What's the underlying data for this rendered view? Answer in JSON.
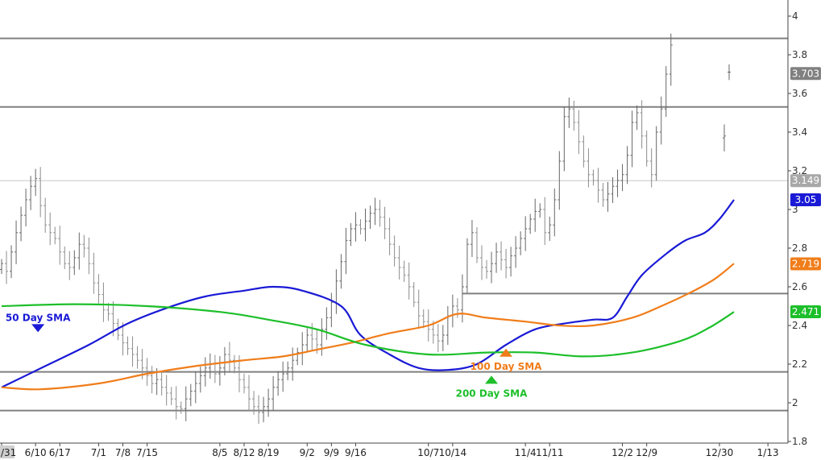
{
  "chart_data": {
    "type": "line",
    "subtype": "ohlc-bar-price-chart",
    "y_axis": {
      "side": "right",
      "range": [
        1.8,
        4.05
      ],
      "ticks": [
        1.8,
        2,
        2.2,
        2.4,
        2.6,
        2.8,
        3,
        3.2,
        3.4,
        3.6,
        3.8,
        4
      ],
      "tick_labels": [
        "1.8",
        "2",
        "2.2",
        "2.4",
        "2.6",
        "2.8",
        "3",
        "3.2",
        "3.4",
        "3.6",
        "3.8",
        "4"
      ]
    },
    "x_axis": {
      "tick_labels": [
        "/31",
        "6/10",
        "6/17",
        "7/1",
        "7/8",
        "7/15",
        "8/5",
        "8/12",
        "8/19",
        "9/2",
        "9/9",
        "9/16",
        "10/7",
        "10/14",
        "11/4",
        "11/11",
        "12/2",
        "12/9",
        "12/30",
        "1/13"
      ],
      "tick_positions": [
        0,
        7,
        12,
        20,
        25,
        30,
        45,
        50,
        55,
        63,
        68,
        73,
        88,
        93,
        108,
        113,
        128,
        133,
        148,
        158
      ]
    },
    "grid": false,
    "price_bars": {
      "x_unit": "trading-day index",
      "count": 139,
      "close": [
        2.72,
        2.68,
        2.78,
        2.88,
        2.97,
        3.05,
        3.12,
        3.16,
        3.02,
        2.92,
        2.88,
        2.85,
        2.78,
        2.72,
        2.7,
        2.75,
        2.82,
        2.8,
        2.72,
        2.62,
        2.56,
        2.48,
        2.46,
        2.41,
        2.35,
        2.31,
        2.28,
        2.25,
        2.22,
        2.18,
        2.14,
        2.1,
        2.12,
        2.08,
        2.05,
        2.02,
        1.98,
        1.97,
        2.02,
        2.06,
        2.1,
        2.14,
        2.18,
        2.2,
        2.15,
        2.18,
        2.25,
        2.22,
        2.18,
        2.12,
        2.08,
        2.02,
        1.98,
        1.95,
        1.98,
        2.02,
        2.08,
        2.12,
        2.15,
        2.18,
        2.22,
        2.26,
        2.3,
        2.35,
        2.33,
        2.3,
        2.38,
        2.44,
        2.52,
        2.63,
        2.73,
        2.84,
        2.9,
        2.92,
        2.9,
        2.94,
        2.98,
        3.0,
        2.96,
        2.9,
        2.82,
        2.75,
        2.7,
        2.66,
        2.6,
        2.52,
        2.45,
        2.42,
        2.38,
        2.35,
        2.32,
        2.35,
        2.45,
        2.5,
        2.48,
        2.6,
        2.82,
        2.88,
        2.75,
        2.7,
        2.68,
        2.72,
        2.78,
        2.74,
        2.7,
        2.76,
        2.8,
        2.85,
        2.9,
        2.95,
        2.99,
        3.0,
        2.88,
        2.92,
        3.05,
        3.25,
        3.48,
        3.52,
        3.45,
        3.35,
        3.25,
        3.18,
        3.15,
        3.1,
        3.05,
        3.08,
        3.12,
        3.15,
        3.18,
        3.28,
        3.45,
        3.5,
        3.38,
        3.25,
        3.18,
        3.4,
        3.52,
        3.7,
        3.85
      ],
      "extra_bars": [
        {
          "index": 149,
          "high": 3.44,
          "low": 3.3,
          "close": 3.38
        },
        {
          "index": 150,
          "high": 3.75,
          "low": 3.67,
          "close": 3.71
        }
      ],
      "last_price": "3.703"
    },
    "series": [
      {
        "name": "50 Day SMA",
        "color": "#1a1ad6",
        "values": [
          2.08,
          2.19,
          2.3,
          2.41,
          2.49,
          2.55,
          2.58,
          2.6,
          2.58,
          2.5,
          2.35,
          2.25,
          2.18,
          2.17,
          2.2,
          2.3,
          2.38,
          2.41,
          2.43,
          2.44,
          2.55,
          2.66,
          2.77,
          2.84,
          2.88,
          2.95,
          3.05
        ]
      },
      {
        "name": "100 Day SMA",
        "color": "#f07d1a",
        "values": [
          2.08,
          2.07,
          2.1,
          2.15,
          2.19,
          2.22,
          2.24,
          2.28,
          2.31,
          2.36,
          2.4,
          2.46,
          2.44,
          2.42,
          2.4,
          2.4,
          2.44,
          2.5,
          2.57,
          2.64,
          2.72
        ]
      },
      {
        "name": "200 Day SMA",
        "color": "#1dbf2a",
        "values": [
          2.5,
          2.51,
          2.5,
          2.47,
          2.43,
          2.38,
          2.3,
          2.25,
          2.26,
          2.26,
          2.24,
          2.26,
          2.32,
          2.39,
          2.47
        ]
      }
    ],
    "sma_x_positions": [
      0,
      9,
      18,
      26,
      34,
      42,
      50,
      56,
      62,
      70,
      74,
      80,
      86,
      92,
      98,
      104,
      110,
      116,
      122,
      126,
      129,
      132,
      137,
      141,
      145,
      148,
      151
    ],
    "sma_x_positions_100": [
      0,
      8,
      20,
      30,
      40,
      50,
      58,
      66,
      72,
      80,
      88,
      94,
      100,
      108,
      115,
      122,
      130,
      136,
      142,
      147,
      151
    ],
    "sma_x_positions_200": [
      0,
      15,
      30,
      45,
      55,
      65,
      75,
      88,
      100,
      110,
      120,
      130,
      140,
      146,
      151
    ],
    "horizontal_lines": [
      {
        "value": 3.885,
        "color": "#808080"
      },
      {
        "value": 3.53,
        "color": "#808080"
      },
      {
        "value": 3.149,
        "color": "#c8c8c8"
      },
      {
        "value": 2.565,
        "color": "#808080",
        "from_index": 95
      },
      {
        "value": 2.16,
        "color": "#808080"
      },
      {
        "value": 1.96,
        "color": "#808080"
      }
    ],
    "price_badges": [
      {
        "label": "3.703",
        "value": 3.703,
        "color": "#808080"
      },
      {
        "label": "3.149",
        "value": 3.149,
        "color": "#a8a8a8"
      },
      {
        "label": "3.05",
        "value": 3.05,
        "color": "#1a1ad6"
      },
      {
        "label": "2.719",
        "value": 2.719,
        "color": "#f07d1a"
      },
      {
        "label": "2.471",
        "value": 2.471,
        "color": "#1dbf2a"
      }
    ],
    "annotations": [
      {
        "label": "50 Day SMA",
        "color": "#1a1ad6",
        "arrow": "down",
        "index": 7.5,
        "value": 2.44
      },
      {
        "label": "100  Day SMA",
        "color": "#f07d1a",
        "arrow": "up",
        "index": 104,
        "value": 2.28
      },
      {
        "label": "200 Day SMA",
        "color": "#1dbf2a",
        "arrow": "up",
        "index": 101,
        "value": 2.14
      }
    ]
  }
}
